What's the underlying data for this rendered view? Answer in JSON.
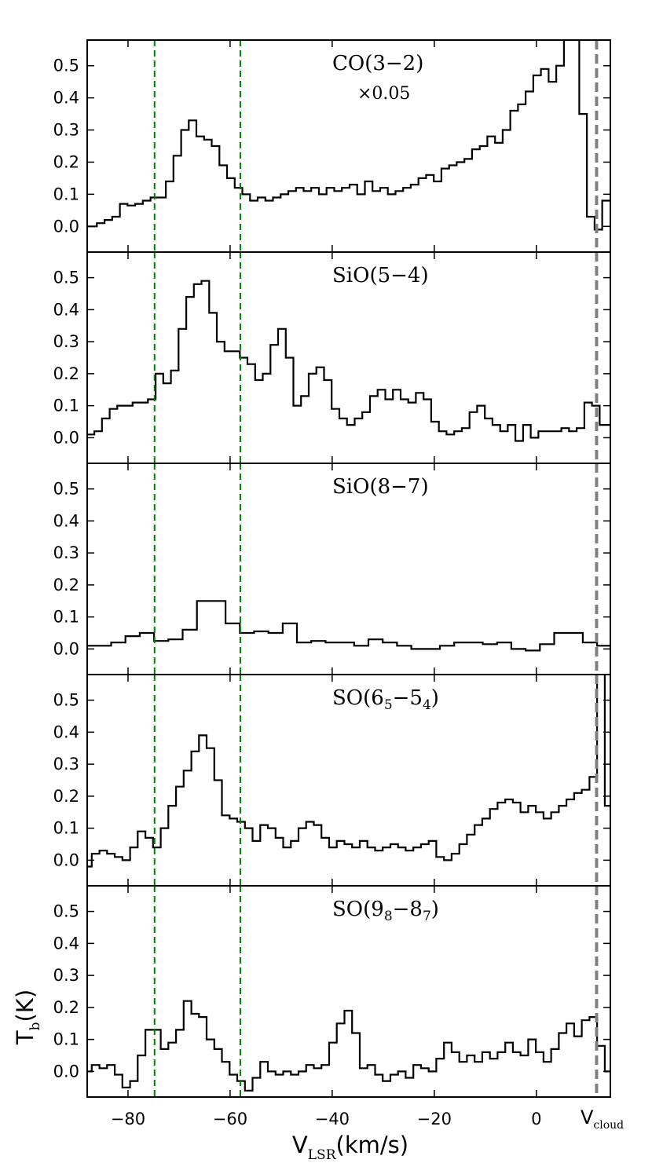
{
  "chart_data": {
    "type": "line",
    "step": true,
    "xlim": [
      -88,
      14.5
    ],
    "ylim": [
      -0.08,
      0.58
    ],
    "xticks": [
      -80,
      -60,
      -40,
      -20,
      0
    ],
    "xtick_labels": [
      "−80",
      "−60",
      "−40",
      "−20",
      "0"
    ],
    "yticks": [
      0.0,
      0.1,
      0.2,
      0.3,
      0.4,
      0.5
    ],
    "ytick_labels": [
      "0.0",
      "0.1",
      "0.2",
      "0.3",
      "0.4",
      "0.5"
    ],
    "xlabel": {
      "main": "V",
      "sub": "LSR",
      "tail": "(km/s)"
    },
    "ylabel": {
      "main": "T",
      "sub": "b",
      "tail": "(K)"
    },
    "v_cloud": 11.8,
    "v_cloud_label": {
      "main": "V",
      "sub": "cloud"
    },
    "v_cloud_color": "#808080",
    "boundary_lines": [
      -74.8,
      -58.0
    ],
    "boundary_color": "#008000",
    "line_color": "#000000",
    "panels": [
      {
        "label": {
          "main": "CO(3−2)",
          "sub1": "",
          "mid": "",
          "sub2": "",
          "close": ""
        },
        "multiplier": "×0.05",
        "x": [
          -88,
          -86.1,
          -84.6,
          -83.1,
          -81.6,
          -80.1,
          -78.6,
          -77.1,
          -75.6,
          -74.1,
          -72.6,
          -71.1,
          -69.6,
          -68.1,
          -66.6,
          -65.1,
          -63.6,
          -62.1,
          -60.6,
          -59.1,
          -57.6,
          -56.1,
          -54.6,
          -53.1,
          -51.6,
          -50.1,
          -48.6,
          -47.1,
          -45.6,
          -44.1,
          -42.6,
          -41.1,
          -39.6,
          -38.1,
          -36.6,
          -35.1,
          -33.6,
          -32.1,
          -30.6,
          -29.1,
          -27.6,
          -26.1,
          -24.6,
          -23.1,
          -21.6,
          -20.1,
          -18.6,
          -17.1,
          -15.6,
          -14.1,
          -12.6,
          -11.1,
          -9.6,
          -8.1,
          -6.6,
          -5.1,
          -3.6,
          -2.1,
          -0.6,
          0.9,
          2.4,
          3.9,
          5.4,
          6.9,
          8.4,
          9.9,
          11.4,
          12.9
        ],
        "y": [
          0.0,
          0.01,
          0.02,
          0.03,
          0.07,
          0.065,
          0.07,
          0.08,
          0.09,
          0.09,
          0.14,
          0.22,
          0.3,
          0.33,
          0.28,
          0.27,
          0.25,
          0.19,
          0.15,
          0.12,
          0.1,
          0.08,
          0.09,
          0.08,
          0.09,
          0.1,
          0.11,
          0.12,
          0.11,
          0.12,
          0.1,
          0.12,
          0.11,
          0.12,
          0.13,
          0.1,
          0.14,
          0.11,
          0.12,
          0.1,
          0.11,
          0.12,
          0.13,
          0.15,
          0.16,
          0.14,
          0.18,
          0.19,
          0.2,
          0.21,
          0.24,
          0.25,
          0.28,
          0.26,
          0.3,
          0.36,
          0.38,
          0.42,
          0.47,
          0.49,
          0.45,
          0.5,
          0.65,
          0.9,
          0.35,
          0.03,
          -0.01,
          0.08
        ]
      },
      {
        "label": {
          "main": "SiO(5−4)",
          "sub1": "",
          "mid": "",
          "sub2": "",
          "close": ""
        },
        "multiplier": "",
        "x": [
          -88,
          -86.6,
          -85.1,
          -83.6,
          -82.1,
          -80.6,
          -79.1,
          -77.6,
          -76.1,
          -74.6,
          -73.1,
          -71.6,
          -70.1,
          -68.6,
          -67.1,
          -65.6,
          -64.1,
          -62.6,
          -61.1,
          -59.6,
          -58.1,
          -56.6,
          -55.1,
          -53.6,
          -52.1,
          -50.6,
          -49.1,
          -47.6,
          -46.1,
          -44.6,
          -43.1,
          -41.6,
          -40.1,
          -38.6,
          -37.1,
          -35.6,
          -34.1,
          -32.6,
          -31.1,
          -29.6,
          -28.1,
          -26.6,
          -25.1,
          -23.6,
          -22.1,
          -20.6,
          -19.1,
          -17.6,
          -16.1,
          -14.6,
          -13.1,
          -11.6,
          -10.1,
          -8.6,
          -7.1,
          -5.6,
          -4.1,
          -2.6,
          -1.1,
          0.4,
          1.9,
          3.4,
          4.9,
          6.4,
          7.9,
          9.4,
          10.9,
          12.4,
          13.9
        ],
        "y": [
          0.01,
          0.02,
          0.06,
          0.09,
          0.1,
          0.1,
          0.11,
          0.11,
          0.12,
          0.2,
          0.17,
          0.21,
          0.34,
          0.44,
          0.48,
          0.49,
          0.39,
          0.3,
          0.27,
          0.27,
          0.25,
          0.23,
          0.18,
          0.2,
          0.29,
          0.34,
          0.25,
          0.1,
          0.13,
          0.2,
          0.22,
          0.18,
          0.09,
          0.06,
          0.04,
          0.06,
          0.08,
          0.13,
          0.15,
          0.12,
          0.15,
          0.12,
          0.11,
          0.14,
          0.12,
          0.05,
          0.02,
          0.01,
          0.02,
          0.03,
          0.08,
          0.1,
          0.06,
          0.04,
          0.02,
          0.04,
          -0.01,
          0.04,
          0.0,
          0.02,
          0.02,
          0.02,
          0.03,
          0.02,
          0.03,
          0.11,
          0.1,
          0.04,
          0.04
        ]
      },
      {
        "label": {
          "main": "SiO(8−7)",
          "sub1": "",
          "mid": "",
          "sub2": "",
          "close": ""
        },
        "multiplier": "",
        "x": [
          -88,
          -83.3,
          -80.5,
          -77.7,
          -74.9,
          -72.1,
          -69.3,
          -66.5,
          -63.7,
          -60.9,
          -58.1,
          -55.3,
          -52.5,
          -49.7,
          -46.9,
          -44.1,
          -41.3,
          -38.5,
          -35.7,
          -32.9,
          -30.1,
          -27.3,
          -24.5,
          -21.7,
          -18.9,
          -16.1,
          -13.3,
          -10.5,
          -7.7,
          -4.9,
          -2.1,
          0.7,
          3.5,
          6.3,
          9.1,
          11.9,
          14.7
        ],
        "y": [
          0.01,
          0.02,
          0.04,
          0.05,
          0.025,
          0.03,
          0.06,
          0.15,
          0.15,
          0.08,
          0.05,
          0.055,
          0.05,
          0.08,
          0.02,
          0.025,
          0.02,
          0.02,
          0.01,
          0.03,
          0.02,
          0.01,
          0.0,
          0.0,
          0.01,
          0.02,
          0.02,
          0.015,
          0.02,
          0.0,
          -0.005,
          0.015,
          0.05,
          0.05,
          0.02,
          0.01,
          0.01
        ]
      },
      {
        "label": {
          "main": "SO(6",
          "sub1": "5",
          "mid": "−5",
          "sub2": "4",
          "close": ")"
        },
        "multiplier": "",
        "x": [
          -88,
          -87.1,
          -85.6,
          -84.1,
          -82.6,
          -81.1,
          -79.6,
          -78.1,
          -76.6,
          -75.1,
          -73.6,
          -72.1,
          -70.6,
          -69.1,
          -67.6,
          -66.1,
          -64.6,
          -63.1,
          -61.6,
          -60.1,
          -58.6,
          -57.1,
          -55.6,
          -54.1,
          -52.6,
          -51.1,
          -49.6,
          -48.1,
          -46.6,
          -45.1,
          -43.6,
          -42.1,
          -40.6,
          -39.1,
          -37.6,
          -36.1,
          -34.6,
          -33.1,
          -31.6,
          -30.1,
          -28.6,
          -27.1,
          -25.6,
          -24.1,
          -22.6,
          -21.1,
          -19.6,
          -18.1,
          -16.6,
          -15.1,
          -13.6,
          -12.1,
          -10.6,
          -9.1,
          -7.6,
          -6.1,
          -4.6,
          -3.1,
          -1.6,
          -0.1,
          1.4,
          2.9,
          4.4,
          5.9,
          7.4,
          8.9,
          10.4,
          11.9,
          13.4
        ],
        "y": [
          -0.02,
          0.02,
          0.03,
          0.02,
          0.01,
          0.0,
          0.04,
          0.09,
          0.07,
          0.04,
          0.1,
          0.17,
          0.23,
          0.28,
          0.34,
          0.39,
          0.35,
          0.25,
          0.14,
          0.13,
          0.12,
          0.1,
          0.06,
          0.11,
          0.1,
          0.07,
          0.04,
          0.06,
          0.1,
          0.12,
          0.11,
          0.07,
          0.04,
          0.06,
          0.05,
          0.04,
          0.06,
          0.04,
          0.03,
          0.04,
          0.05,
          0.04,
          0.03,
          0.04,
          0.05,
          0.06,
          0.01,
          0.0,
          0.02,
          0.05,
          0.08,
          0.11,
          0.13,
          0.16,
          0.18,
          0.19,
          0.18,
          0.15,
          0.17,
          0.15,
          0.13,
          0.15,
          0.17,
          0.19,
          0.21,
          0.22,
          0.26,
          0.6,
          0.17
        ]
      },
      {
        "label": {
          "main": "SO(9",
          "sub1": "8",
          "mid": "−8",
          "sub2": "7",
          "close": ")"
        },
        "multiplier": "",
        "x": [
          -88,
          -87.1,
          -85.6,
          -84.1,
          -82.6,
          -81.1,
          -79.6,
          -78.1,
          -76.6,
          -75.1,
          -73.6,
          -72.1,
          -70.6,
          -69.1,
          -67.6,
          -66.1,
          -64.6,
          -63.1,
          -61.6,
          -60.1,
          -58.6,
          -57.1,
          -55.6,
          -54.1,
          -52.6,
          -51.1,
          -49.6,
          -48.1,
          -46.6,
          -45.1,
          -43.6,
          -42.1,
          -40.6,
          -39.1,
          -37.6,
          -36.1,
          -34.6,
          -33.1,
          -31.6,
          -30.1,
          -28.6,
          -27.1,
          -25.6,
          -24.1,
          -22.6,
          -21.1,
          -19.6,
          -18.1,
          -16.6,
          -15.1,
          -13.6,
          -12.1,
          -10.6,
          -9.1,
          -7.6,
          -6.1,
          -4.6,
          -3.1,
          -1.6,
          -0.1,
          1.4,
          2.9,
          4.4,
          5.9,
          7.4,
          8.9,
          10.4,
          11.9,
          13.4
        ],
        "y": [
          0.0,
          0.02,
          0.01,
          0.02,
          -0.01,
          -0.05,
          -0.03,
          0.05,
          0.13,
          0.13,
          0.07,
          0.09,
          0.13,
          0.22,
          0.18,
          0.17,
          0.1,
          0.07,
          0.03,
          -0.01,
          -0.03,
          -0.06,
          -0.02,
          0.03,
          0.0,
          -0.01,
          0.0,
          -0.01,
          0.0,
          0.02,
          0.01,
          0.02,
          0.09,
          0.15,
          0.19,
          0.12,
          0.01,
          0.02,
          -0.01,
          -0.03,
          -0.01,
          0.0,
          -0.02,
          0.02,
          0.01,
          0.0,
          0.04,
          0.09,
          0.06,
          0.03,
          0.05,
          0.03,
          0.06,
          0.04,
          0.06,
          0.09,
          0.06,
          0.05,
          0.1,
          0.06,
          0.03,
          0.07,
          0.12,
          0.15,
          0.11,
          0.16,
          0.17,
          0.08,
          0.0
        ]
      }
    ]
  }
}
